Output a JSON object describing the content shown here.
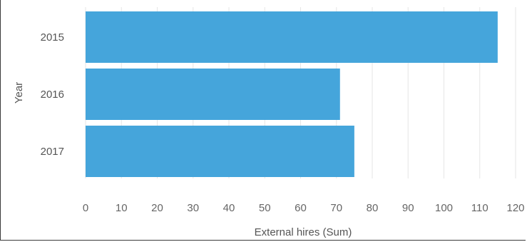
{
  "chart_data": {
    "type": "bar",
    "orientation": "horizontal",
    "categories": [
      "2015",
      "2016",
      "2017"
    ],
    "values": [
      115,
      71,
      75
    ],
    "xlabel": "External hires (Sum)",
    "ylabel": "Year",
    "xlim": [
      0,
      120
    ],
    "xticks": [
      0,
      10,
      20,
      30,
      40,
      50,
      60,
      70,
      80,
      90,
      100,
      110,
      120
    ],
    "grid": "vertical",
    "bar_color": "#45a5db",
    "legend": "none"
  }
}
